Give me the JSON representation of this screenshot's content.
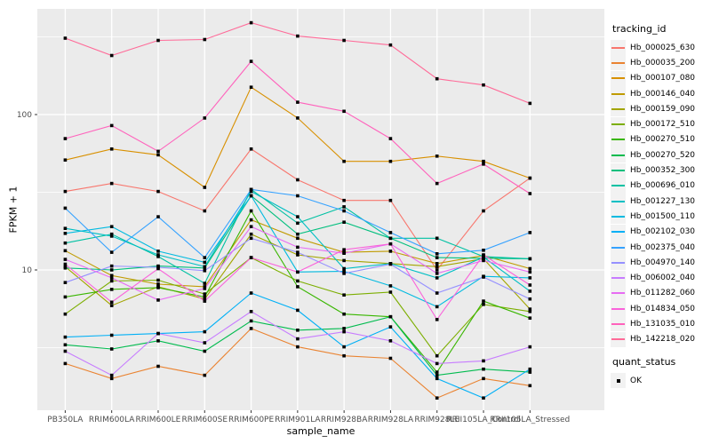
{
  "figure": {
    "background": "#FFFFFF",
    "panel_background": "#EBEBEB",
    "grid_color": "#FFFFFF",
    "tick_label_color": "#4D4D4D",
    "point_color": "#000000"
  },
  "y_axis": {
    "title": "FPKM + 1",
    "scale": "log10",
    "tick_labels": [
      "100",
      "10"
    ],
    "tick_values": [
      100,
      10
    ],
    "minor_gridline_values": [
      316.23,
      31.623,
      3.1623
    ]
  },
  "x_axis": {
    "title": "sample_name"
  },
  "legend": {
    "title": "tracking_id",
    "quant_title": "quant_status",
    "quant_items": [
      {
        "label": "OK",
        "marker": "black-square"
      }
    ]
  },
  "chart_data": {
    "type": "line",
    "title": "",
    "xlabel": "sample_name",
    "ylabel": "FPKM + 1",
    "y_scale": "log10",
    "ylim": [
      1.2,
      480
    ],
    "grid": true,
    "legend_position": "right",
    "point_marker": {
      "shape": "square",
      "color": "#000000"
    },
    "categories": [
      "PB350LA",
      "RRIM600LA",
      "RRIM600LE",
      "RRIM600SE",
      "RRIM600PE",
      "RRIM901LA",
      "RRIM928BA",
      "RRIM928LA",
      "RRIM928LE",
      "RRII105LA_Control",
      "RRII105LA_Stressed"
    ],
    "series": [
      {
        "name": "Hb_000025_630",
        "color": "#F8766D",
        "values": [
          32,
          36,
          32,
          24,
          60,
          38,
          28,
          28,
          10,
          24,
          39
        ]
      },
      {
        "name": "Hb_000035_200",
        "color": "#EA8331",
        "values": [
          2.5,
          2.0,
          2.4,
          2.1,
          4.2,
          3.2,
          2.8,
          2.7,
          1.5,
          2.0,
          1.8
        ]
      },
      {
        "name": "Hb_000107_080",
        "color": "#D89000",
        "values": [
          51,
          60,
          55,
          34,
          150,
          95,
          50,
          50,
          54,
          50,
          39
        ]
      },
      {
        "name": "Hb_000146_040",
        "color": "#C09B00",
        "values": [
          13.3,
          9.2,
          8.1,
          7.8,
          21,
          16,
          13,
          13.2,
          11,
          12.4,
          10.2
        ]
      },
      {
        "name": "Hb_000159_090",
        "color": "#A3A500",
        "values": [
          10.5,
          5.9,
          7.8,
          6.5,
          17,
          12.5,
          11.5,
          11,
          10.5,
          11.8,
          5.6
        ]
      },
      {
        "name": "Hb_000172_510",
        "color": "#7CAE00",
        "values": [
          5.2,
          8.5,
          8.6,
          7.0,
          12,
          8.5,
          6.9,
          7.2,
          2.8,
          6.0,
          5.4
        ]
      },
      {
        "name": "Hb_000270_510",
        "color": "#39B600",
        "values": [
          6.7,
          7.5,
          7.7,
          6.7,
          24,
          7.8,
          5.2,
          5.0,
          2.2,
          6.3,
          4.9
        ]
      },
      {
        "name": "Hb_000270_520",
        "color": "#00BB4E",
        "values": [
          3.3,
          3.1,
          3.5,
          3.0,
          4.7,
          4.1,
          4.2,
          5.0,
          2.1,
          2.3,
          2.2
        ]
      },
      {
        "name": "Hb_000352_300",
        "color": "#00BF7D",
        "values": [
          10.3,
          10.0,
          10.6,
          10.3,
          30,
          17,
          20.3,
          16,
          12,
          11.9,
          11.8
        ]
      },
      {
        "name": "Hb_000696_010",
        "color": "#00C1A3",
        "values": [
          14.9,
          17,
          12.2,
          8.2,
          33,
          20,
          25.5,
          16,
          16,
          12.2,
          11.8
        ]
      },
      {
        "name": "Hb_001227_130",
        "color": "#00BFC4",
        "values": [
          18.5,
          16.5,
          12.5,
          10.5,
          32,
          22,
          10.2,
          11,
          8.9,
          12.1,
          7.3
        ]
      },
      {
        "name": "Hb_001500_110",
        "color": "#00BAE0",
        "values": [
          17.2,
          19,
          13.2,
          11.2,
          30,
          9.7,
          9.8,
          7.9,
          5.8,
          9.1,
          8.9
        ]
      },
      {
        "name": "Hb_002102_030",
        "color": "#00B0F6",
        "values": [
          3.7,
          3.8,
          3.9,
          4.0,
          7.1,
          5.5,
          3.2,
          4.3,
          2.0,
          1.5,
          2.3
        ]
      },
      {
        "name": "Hb_002375_040",
        "color": "#35A2FF",
        "values": [
          25,
          13,
          22,
          12,
          33,
          30,
          24,
          17.4,
          12.7,
          13.4,
          17.4
        ]
      },
      {
        "name": "Hb_004970_140",
        "color": "#9590FF",
        "values": [
          8.3,
          10.6,
          10.4,
          9.9,
          16,
          13,
          9.5,
          10.9,
          7.1,
          9.0,
          6.5
        ]
      },
      {
        "name": "Hb_006002_040",
        "color": "#C77CFF",
        "values": [
          3.0,
          2.1,
          3.9,
          3.4,
          5.4,
          3.6,
          4.0,
          3.5,
          2.5,
          2.6,
          3.2
        ]
      },
      {
        "name": "Hb_011282_060",
        "color": "#E76BF3",
        "values": [
          11.7,
          8.9,
          6.4,
          7.6,
          19,
          14,
          12.8,
          14.7,
          9.5,
          11.5,
          9.7
        ]
      },
      {
        "name": "Hb_014834_050",
        "color": "#FA62DB",
        "values": [
          10.9,
          6.2,
          10.2,
          6.3,
          12,
          9.7,
          13.5,
          14.7,
          4.8,
          12.5,
          8.0
        ]
      },
      {
        "name": "Hb_131035_010",
        "color": "#FF62BC",
        "values": [
          70,
          85,
          58,
          95,
          220,
          120,
          105,
          70,
          36,
          48,
          31
        ]
      },
      {
        "name": "Hb_142218_020",
        "color": "#FF6A98",
        "values": [
          310,
          240,
          300,
          304,
          390,
          320,
          300,
          280,
          170,
          155,
          118
        ]
      }
    ]
  }
}
